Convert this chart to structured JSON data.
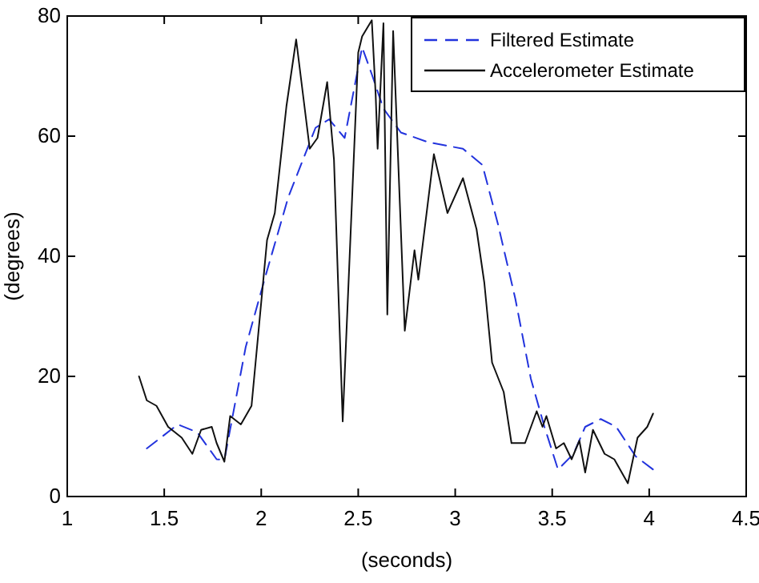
{
  "chart_data": {
    "type": "line",
    "xlabel": "(seconds)",
    "ylabel": "(degrees)",
    "xlim": [
      1,
      4.5
    ],
    "xticks": [
      1,
      1.5,
      2,
      2.5,
      3,
      3.5,
      4,
      4.5
    ],
    "ylim": [
      0,
      80
    ],
    "yticks": [
      0,
      20,
      40,
      60,
      80
    ],
    "grid": false,
    "legend": "top right",
    "series": [
      {
        "name": "Filtered Estimate",
        "color": "#2233dd",
        "line_style": "dashed",
        "x": [
          1.41,
          1.57,
          1.67,
          1.77,
          1.81,
          1.92,
          2.02,
          2.14,
          2.28,
          2.35,
          2.43,
          2.52,
          2.57,
          2.63,
          2.72,
          2.86,
          3.04,
          3.14,
          3.22,
          3.31,
          3.39,
          3.46,
          3.53,
          3.61,
          3.67,
          3.75,
          3.83,
          3.93,
          4.02
        ],
        "values": [
          8,
          12,
          10.7,
          6.2,
          6.1,
          24.9,
          36.5,
          49.9,
          61.4,
          62.8,
          59.7,
          74.8,
          70.3,
          64.6,
          60.6,
          59,
          57.9,
          55.2,
          45.4,
          32.9,
          19.6,
          11.6,
          4.5,
          7.1,
          11.6,
          12.9,
          11.6,
          6.7,
          4.5
        ]
      },
      {
        "name": "Accelerometer Estimate",
        "color": "#111111",
        "line_style": "solid",
        "x": [
          1.37,
          1.41,
          1.46,
          1.52,
          1.59,
          1.645,
          1.69,
          1.745,
          1.77,
          1.81,
          1.84,
          1.895,
          1.95,
          2.03,
          2.07,
          2.13,
          2.18,
          2.25,
          2.29,
          2.34,
          2.375,
          2.42,
          2.5,
          2.52,
          2.57,
          2.59,
          2.6,
          2.63,
          2.65,
          2.68,
          2.74,
          2.79,
          2.81,
          2.89,
          2.96,
          3.04,
          3.11,
          3.15,
          3.19,
          3.25,
          3.29,
          3.36,
          3.42,
          3.45,
          3.47,
          3.52,
          3.56,
          3.6,
          3.64,
          3.67,
          3.71,
          3.77,
          3.82,
          3.89,
          3.94,
          3.99,
          4.02
        ],
        "values": [
          20,
          16,
          15.1,
          11.6,
          9.8,
          7.1,
          11.1,
          11.6,
          8.9,
          5.8,
          13.4,
          12,
          15.1,
          42.7,
          47.2,
          65,
          76.1,
          57.9,
          59.7,
          69,
          56.1,
          12.5,
          73.9,
          76.6,
          79.3,
          66.8,
          57.9,
          78.8,
          30.3,
          77.5,
          27.6,
          41,
          36.1,
          57,
          47.2,
          53,
          44.5,
          35.6,
          22.3,
          17.4,
          8.9,
          8.9,
          14.2,
          11.6,
          13.4,
          8,
          8.9,
          6.2,
          9.3,
          4,
          11.1,
          7.1,
          6.2,
          2.2,
          9.8,
          11.6,
          13.8
        ]
      }
    ]
  }
}
